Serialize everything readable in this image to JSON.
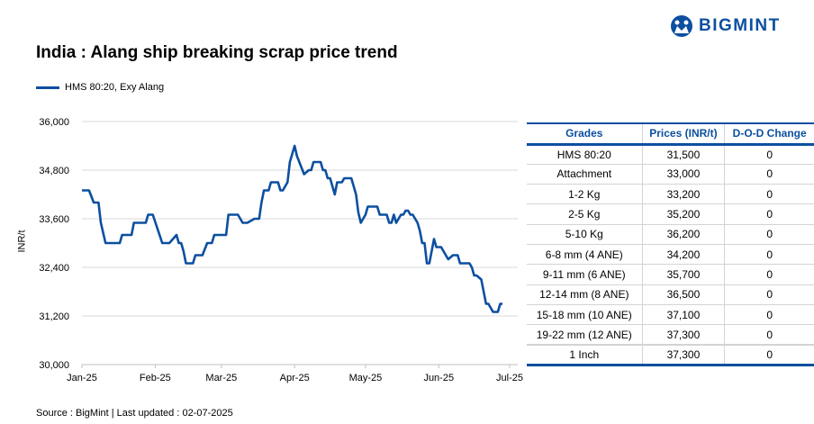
{
  "brand": {
    "name": "BIGMINT",
    "color": "#0c4fa0"
  },
  "title": "India : Alang ship breaking scrap price trend",
  "source": "Source : BigMint | Last updated : 02-07-2025",
  "chart_data": {
    "type": "line",
    "title": "India : Alang ship breaking scrap price trend",
    "ylabel": "INR/t",
    "xlabel": "",
    "ylim": [
      30000,
      36000
    ],
    "yticks": [
      30000,
      31200,
      32400,
      33600,
      34800,
      36000
    ],
    "ytick_labels": [
      "30,000",
      "31,200",
      "32,400",
      "33,600",
      "34,800",
      "36,000"
    ],
    "xticks": [
      "2025-01-01",
      "2025-02-01",
      "2025-03-01",
      "2025-04-01",
      "2025-05-01",
      "2025-06-01",
      "2025-07-01"
    ],
    "xtick_labels": [
      "Jan-25",
      "Feb-25",
      "Mar-25",
      "Apr-25",
      "May-25",
      "Jun-25",
      "Jul-25"
    ],
    "grid": "horizontal",
    "legend": "top-left",
    "series": [
      {
        "name": "HMS 80:20, Exy Alang",
        "color": "#0c4fa0",
        "points": [
          [
            "2025-01-01",
            34300
          ],
          [
            "2025-01-04",
            34300
          ],
          [
            "2025-01-06",
            34000
          ],
          [
            "2025-01-08",
            34000
          ],
          [
            "2025-01-09",
            33500
          ],
          [
            "2025-01-11",
            33000
          ],
          [
            "2025-01-17",
            33000
          ],
          [
            "2025-01-18",
            33200
          ],
          [
            "2025-01-22",
            33200
          ],
          [
            "2025-01-23",
            33500
          ],
          [
            "2025-01-28",
            33500
          ],
          [
            "2025-01-29",
            33700
          ],
          [
            "2025-01-31",
            33700
          ],
          [
            "2025-02-04",
            33000
          ],
          [
            "2025-02-07",
            33000
          ],
          [
            "2025-02-10",
            33200
          ],
          [
            "2025-02-11",
            33000
          ],
          [
            "2025-02-12",
            33000
          ],
          [
            "2025-02-13",
            32800
          ],
          [
            "2025-02-14",
            32500
          ],
          [
            "2025-02-17",
            32500
          ],
          [
            "2025-02-18",
            32700
          ],
          [
            "2025-02-21",
            32700
          ],
          [
            "2025-02-23",
            33000
          ],
          [
            "2025-02-25",
            33000
          ],
          [
            "2025-02-26",
            33200
          ],
          [
            "2025-03-03",
            33200
          ],
          [
            "2025-03-04",
            33700
          ],
          [
            "2025-03-08",
            33700
          ],
          [
            "2025-03-10",
            33500
          ],
          [
            "2025-03-12",
            33500
          ],
          [
            "2025-03-15",
            33600
          ],
          [
            "2025-03-17",
            33600
          ],
          [
            "2025-03-18",
            34000
          ],
          [
            "2025-03-19",
            34300
          ],
          [
            "2025-03-21",
            34300
          ],
          [
            "2025-03-22",
            34500
          ],
          [
            "2025-03-25",
            34500
          ],
          [
            "2025-03-26",
            34300
          ],
          [
            "2025-03-27",
            34300
          ],
          [
            "2025-03-29",
            34500
          ],
          [
            "2025-03-30",
            35000
          ],
          [
            "2025-04-01",
            35400
          ],
          [
            "2025-04-02",
            35150
          ],
          [
            "2025-04-03",
            35000
          ],
          [
            "2025-04-05",
            34700
          ],
          [
            "2025-04-07",
            34800
          ],
          [
            "2025-04-08",
            34800
          ],
          [
            "2025-04-09",
            35000
          ],
          [
            "2025-04-12",
            35000
          ],
          [
            "2025-04-13",
            34800
          ],
          [
            "2025-04-14",
            34800
          ],
          [
            "2025-04-15",
            34600
          ],
          [
            "2025-04-16",
            34600
          ],
          [
            "2025-04-17",
            34400
          ],
          [
            "2025-04-18",
            34200
          ],
          [
            "2025-04-19",
            34500
          ],
          [
            "2025-04-21",
            34500
          ],
          [
            "2025-04-22",
            34600
          ],
          [
            "2025-04-25",
            34600
          ],
          [
            "2025-04-27",
            34200
          ],
          [
            "2025-04-28",
            33750
          ],
          [
            "2025-04-29",
            33500
          ],
          [
            "2025-05-01",
            33700
          ],
          [
            "2025-05-02",
            33900
          ],
          [
            "2025-05-06",
            33900
          ],
          [
            "2025-05-07",
            33700
          ],
          [
            "2025-05-10",
            33700
          ],
          [
            "2025-05-11",
            33500
          ],
          [
            "2025-05-12",
            33500
          ],
          [
            "2025-05-13",
            33700
          ],
          [
            "2025-05-14",
            33500
          ],
          [
            "2025-05-16",
            33700
          ],
          [
            "2025-05-17",
            33700
          ],
          [
            "2025-05-18",
            33800
          ],
          [
            "2025-05-19",
            33800
          ],
          [
            "2025-05-20",
            33700
          ],
          [
            "2025-05-21",
            33700
          ],
          [
            "2025-05-23",
            33500
          ],
          [
            "2025-05-24",
            33300
          ],
          [
            "2025-05-25",
            33000
          ],
          [
            "2025-05-26",
            33000
          ],
          [
            "2025-05-27",
            32500
          ],
          [
            "2025-05-28",
            32500
          ],
          [
            "2025-05-30",
            33100
          ],
          [
            "2025-05-31",
            32900
          ],
          [
            "2025-06-02",
            32900
          ],
          [
            "2025-06-04",
            32700
          ],
          [
            "2025-06-05",
            32600
          ],
          [
            "2025-06-07",
            32700
          ],
          [
            "2025-06-09",
            32700
          ],
          [
            "2025-06-10",
            32500
          ],
          [
            "2025-06-14",
            32500
          ],
          [
            "2025-06-15",
            32400
          ],
          [
            "2025-06-16",
            32200
          ],
          [
            "2025-06-17",
            32200
          ],
          [
            "2025-06-19",
            32100
          ],
          [
            "2025-06-21",
            31500
          ],
          [
            "2025-06-22",
            31500
          ],
          [
            "2025-06-24",
            31300
          ],
          [
            "2025-06-26",
            31300
          ],
          [
            "2025-06-27",
            31500
          ],
          [
            "2025-06-28",
            31500
          ]
        ]
      }
    ]
  },
  "table": {
    "headers": [
      "Grades",
      "Prices (INR/t)",
      "D-O-D Change"
    ],
    "rows": [
      [
        "HMS 80:20",
        "31,500",
        "0"
      ],
      [
        "Attachment",
        "33,000",
        "0"
      ],
      [
        "1-2 Kg",
        "33,200",
        "0"
      ],
      [
        "2-5 Kg",
        "35,200",
        "0"
      ],
      [
        "5-10 Kg",
        "36,200",
        "0"
      ],
      [
        "6-8 mm (4 ANE)",
        "34,200",
        "0"
      ],
      [
        "9-11 mm (6 ANE)",
        "35,700",
        "0"
      ],
      [
        "12-14 mm (8 ANE)",
        "36,500",
        "0"
      ],
      [
        "15-18 mm (10 ANE)",
        "37,100",
        "0"
      ],
      [
        "19-22 mm (12 ANE)",
        "37,300",
        "0"
      ],
      [
        "1 Inch",
        "37,300",
        "0"
      ]
    ]
  }
}
